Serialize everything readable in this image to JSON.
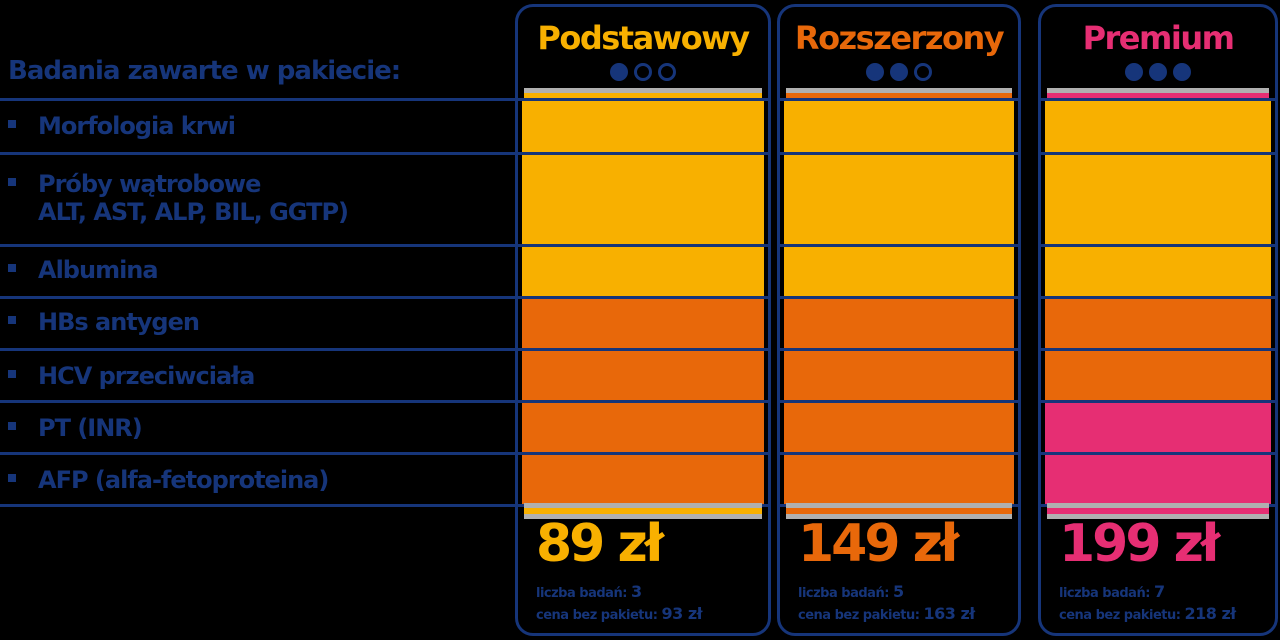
{
  "heading": "Badania zawarte w pakiecie:",
  "rows": [
    {
      "label": "Morfologia krwi",
      "sub": ""
    },
    {
      "label": "Próby wątrobowe",
      "sub": "ALT, AST, ALP, BIL, GGTP)"
    },
    {
      "label": "Albumina",
      "sub": ""
    },
    {
      "label": "HBs antygen",
      "sub": ""
    },
    {
      "label": "HCV przeciwciała",
      "sub": ""
    },
    {
      "label": "PT (INR)",
      "sub": ""
    },
    {
      "label": "AFP (alfa-fetoproteina)",
      "sub": ""
    }
  ],
  "colors": {
    "navy": "#16357a",
    "gold": "#f8b000",
    "orange": "#e8680a",
    "pink": "#e62e73"
  },
  "packages": [
    {
      "name": "Podstawowy",
      "color": "#f8b000",
      "level_dots": [
        true,
        false,
        false
      ],
      "price": "89 zł",
      "tests_label": "liczba badań:",
      "tests_count": "3",
      "no_package_label": "cena bez pakietu:",
      "no_package_price": "93 zł",
      "rows": [
        "#f8b000",
        "#f8b000",
        "#f8b000",
        "#e8680a",
        "#e8680a",
        "#e8680a",
        "#e8680a"
      ]
    },
    {
      "name": "Rozszerzony",
      "color": "#e8680a",
      "level_dots": [
        true,
        true,
        false
      ],
      "price": "149 zł",
      "tests_label": "liczba badań:",
      "tests_count": "5",
      "no_package_label": "cena bez pakietu:",
      "no_package_price": "163 zł",
      "rows": [
        "#f8b000",
        "#f8b000",
        "#f8b000",
        "#e8680a",
        "#e8680a",
        "#e8680a",
        "#e8680a"
      ]
    },
    {
      "name": "Premium",
      "color": "#e62e73",
      "level_dots": [
        true,
        true,
        true
      ],
      "price": "199 zł",
      "tests_label": "liczba badań:",
      "tests_count": "7",
      "no_package_label": "cena bez pakietu:",
      "no_package_price": "218 zł",
      "rows": [
        "#f8b000",
        "#f8b000",
        "#f8b000",
        "#e8680a",
        "#e8680a",
        "#e62e73",
        "#e62e73"
      ]
    }
  ]
}
